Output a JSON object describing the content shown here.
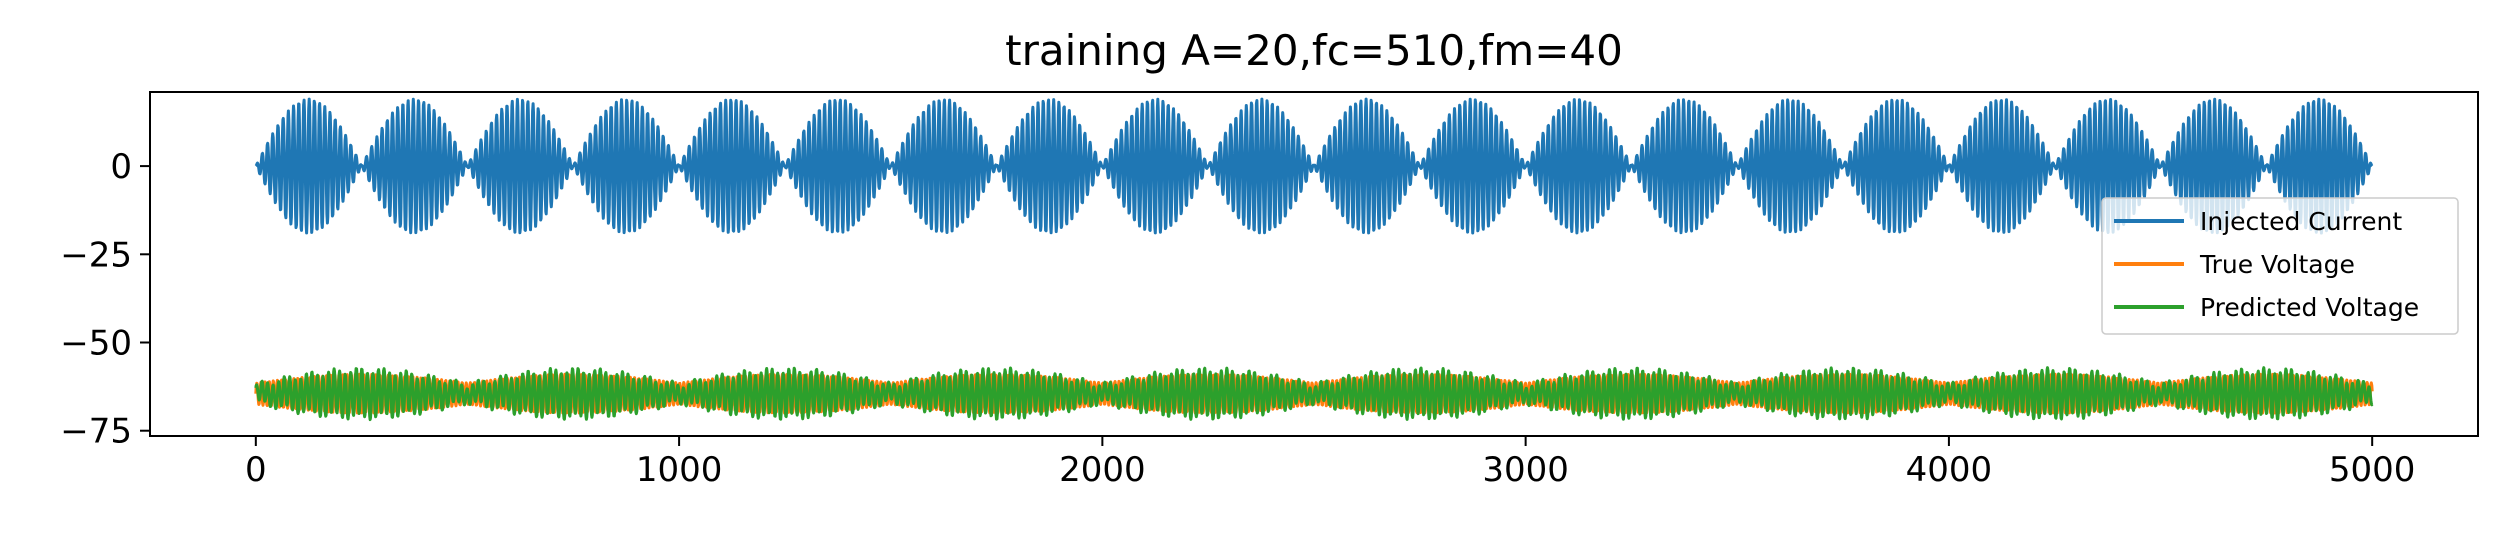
{
  "chart_data": {
    "type": "line",
    "title": "training A=20,fc=510,fm=40",
    "xlabel": "",
    "ylabel": "",
    "xlim": [
      -250,
      5250
    ],
    "ylim": [
      -76.5,
      21
    ],
    "x_ticks": [
      0,
      1000,
      2000,
      3000,
      4000,
      5000
    ],
    "x_tick_labels": [
      "0",
      "1000",
      "2000",
      "3000",
      "4000",
      "5000"
    ],
    "y_ticks": [
      0,
      -25,
      -50,
      -75
    ],
    "y_tick_labels": [
      "0",
      "−25",
      "−50",
      "−75"
    ],
    "grid": false,
    "legend_position": "center-right",
    "series": [
      {
        "name": "Injected Current",
        "color": "#1f77b4",
        "x_range": [
          0,
          5000
        ],
        "n_points": 5000,
        "approx_max": 19,
        "approx_min": -19,
        "envelope_period": 250,
        "note_shape": "amplitude-modulated oscillation centered near 0"
      },
      {
        "name": "True Voltage",
        "color": "#ff7f0e",
        "x_range": [
          0,
          5000
        ],
        "n_points": 5000,
        "approx_max": -59,
        "approx_min": -70,
        "envelope_period": 500
      },
      {
        "name": "Predicted Voltage",
        "color": "#2ca02c",
        "x_range": [
          0,
          5000
        ],
        "n_points": 5000,
        "approx_max": -58,
        "approx_min": -71,
        "envelope_period": 500
      }
    ]
  }
}
